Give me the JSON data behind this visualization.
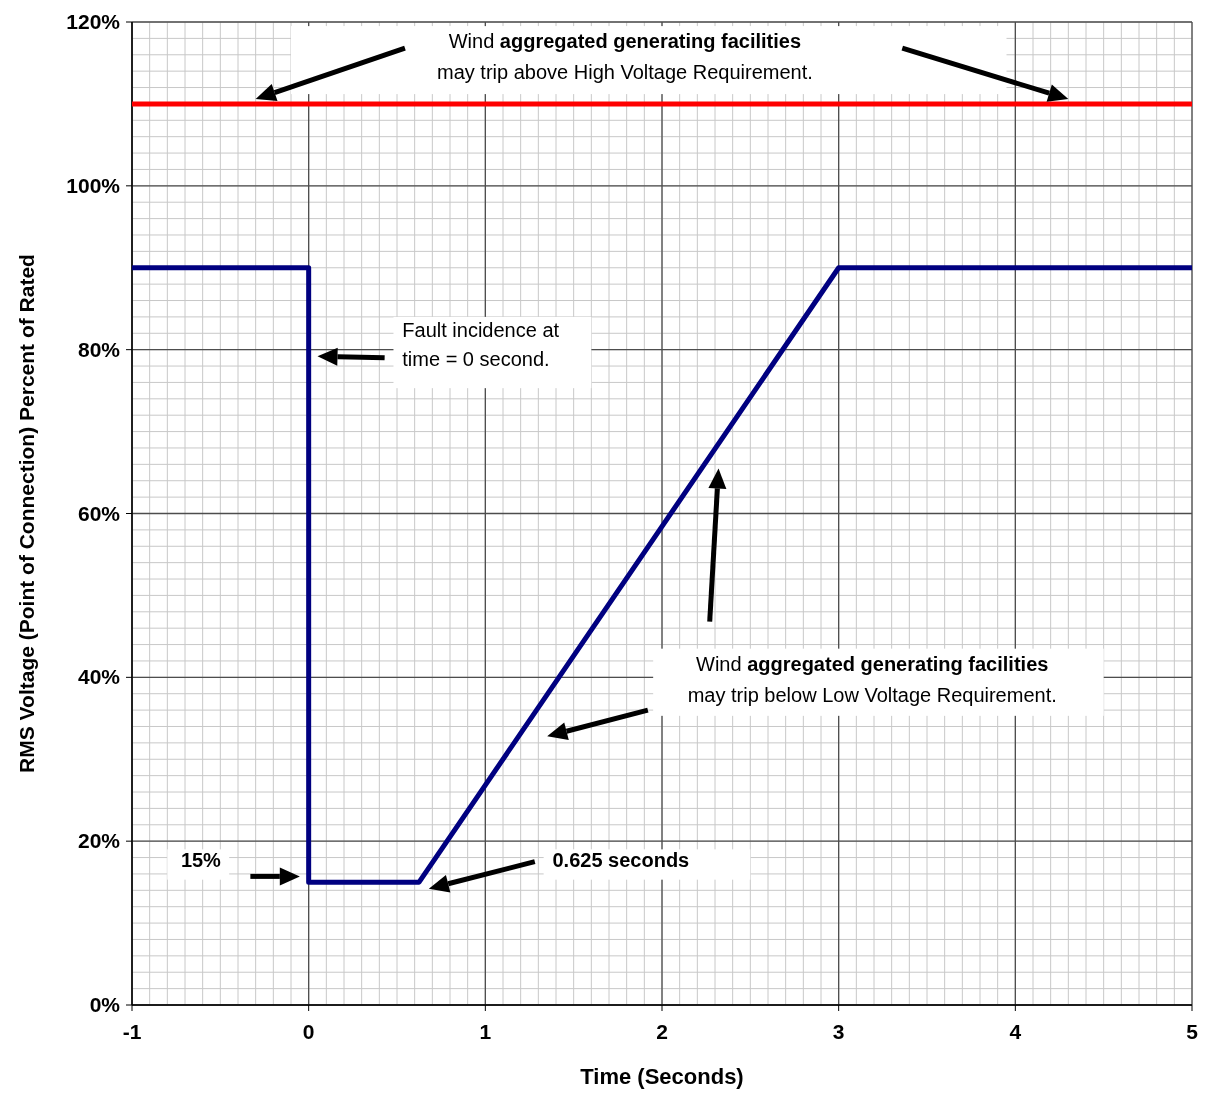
{
  "chart_data": {
    "type": "line",
    "xlabel": "Time (Seconds)",
    "ylabel": "RMS Voltage (Point of Connection) Percent of Rated",
    "x": [
      -1,
      0,
      0,
      0.625,
      3,
      5
    ],
    "series": [
      {
        "color": "#000080",
        "values": [
          90,
          90,
          15,
          15,
          90,
          90
        ]
      }
    ],
    "xlim": [
      -1,
      5
    ],
    "xticks": [
      -1,
      0,
      1,
      2,
      3,
      4,
      5
    ],
    "ylim": [
      0,
      120
    ],
    "yticks": [
      {
        "value": 0,
        "label": "0%"
      },
      {
        "value": 20,
        "label": "20%"
      },
      {
        "value": 40,
        "label": "40%"
      },
      {
        "value": 60,
        "label": "60%"
      },
      {
        "value": 80,
        "label": "80%"
      },
      {
        "value": 100,
        "label": "100%"
      },
      {
        "value": 120,
        "label": "120%"
      }
    ],
    "grid": true,
    "line_style": "solid",
    "ref_lines": [
      {
        "axis": "y",
        "value": 110,
        "color": "#ff0000"
      }
    ],
    "annotations": [
      "Wind aggregated generating facilities\nmay trip above High Voltage Requirement.",
      "Fault incidence at\ntime = 0 second.",
      "Wind aggregated generating facilities\nmay trip below Low Voltage Requirement.",
      "15%",
      "0.625 seconds"
    ]
  }
}
